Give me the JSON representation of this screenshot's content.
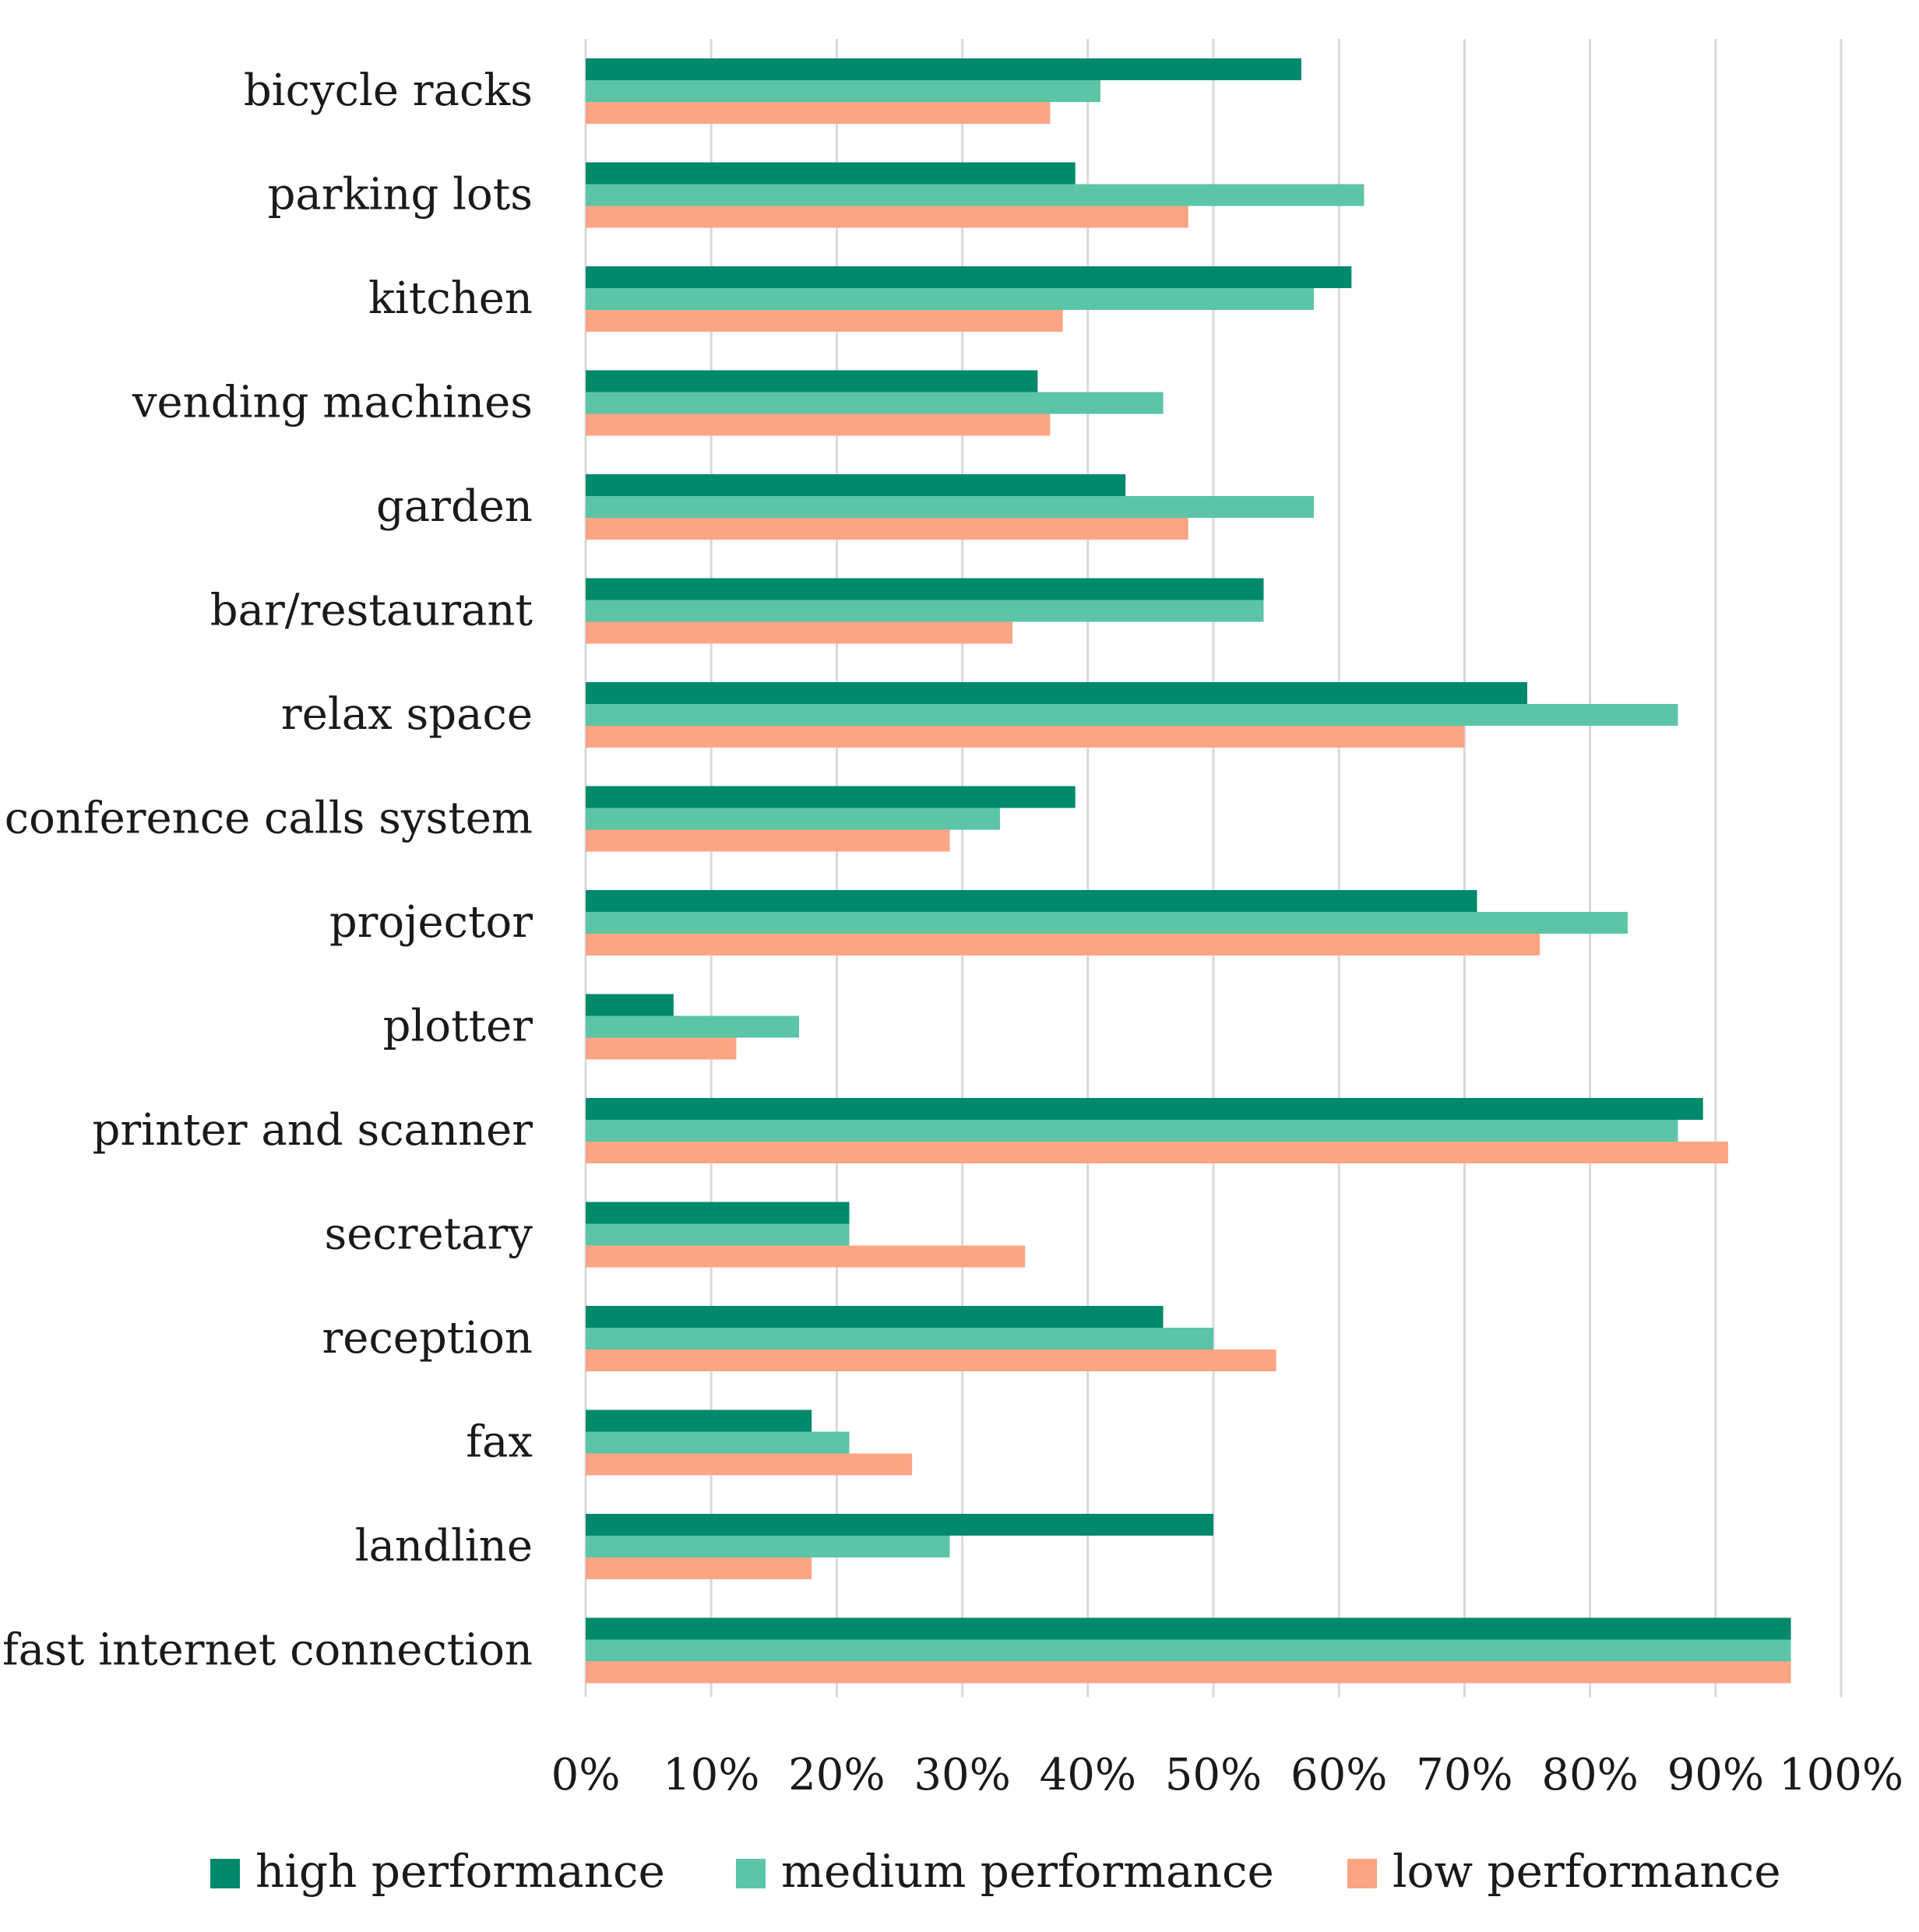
{
  "chart_data": {
    "type": "bar",
    "orientation": "horizontal",
    "title": "",
    "xlabel": "",
    "ylabel": "",
    "xlim": [
      0,
      100
    ],
    "grid": true,
    "legend_position": "bottom",
    "x_ticks": [
      "0%",
      "10%",
      "20%",
      "30%",
      "40%",
      "50%",
      "60%",
      "70%",
      "80%",
      "90%",
      "100%"
    ],
    "categories": [
      "bicycle racks",
      "parking lots",
      "kitchen",
      "vending machines",
      "garden",
      "bar/restaurant",
      "relax space",
      "conference calls system",
      "projector",
      "plotter",
      "printer and scanner",
      "secretary",
      "reception",
      "fax",
      "landline",
      "fast internet connection"
    ],
    "series": [
      {
        "name": "high performance",
        "color": "#00896a",
        "values": [
          57,
          39,
          61,
          36,
          43,
          54,
          75,
          39,
          71,
          7,
          89,
          21,
          46,
          18,
          50,
          96
        ]
      },
      {
        "name": "medium performance",
        "color": "#5bc5a6",
        "values": [
          41,
          62,
          58,
          46,
          58,
          54,
          87,
          33,
          83,
          17,
          87,
          21,
          50,
          21,
          29,
          96
        ]
      },
      {
        "name": "low performance",
        "color": "#fba585",
        "values": [
          37,
          48,
          38,
          37,
          48,
          34,
          70,
          29,
          76,
          12,
          91,
          35,
          55,
          26,
          18,
          96
        ]
      }
    ]
  }
}
